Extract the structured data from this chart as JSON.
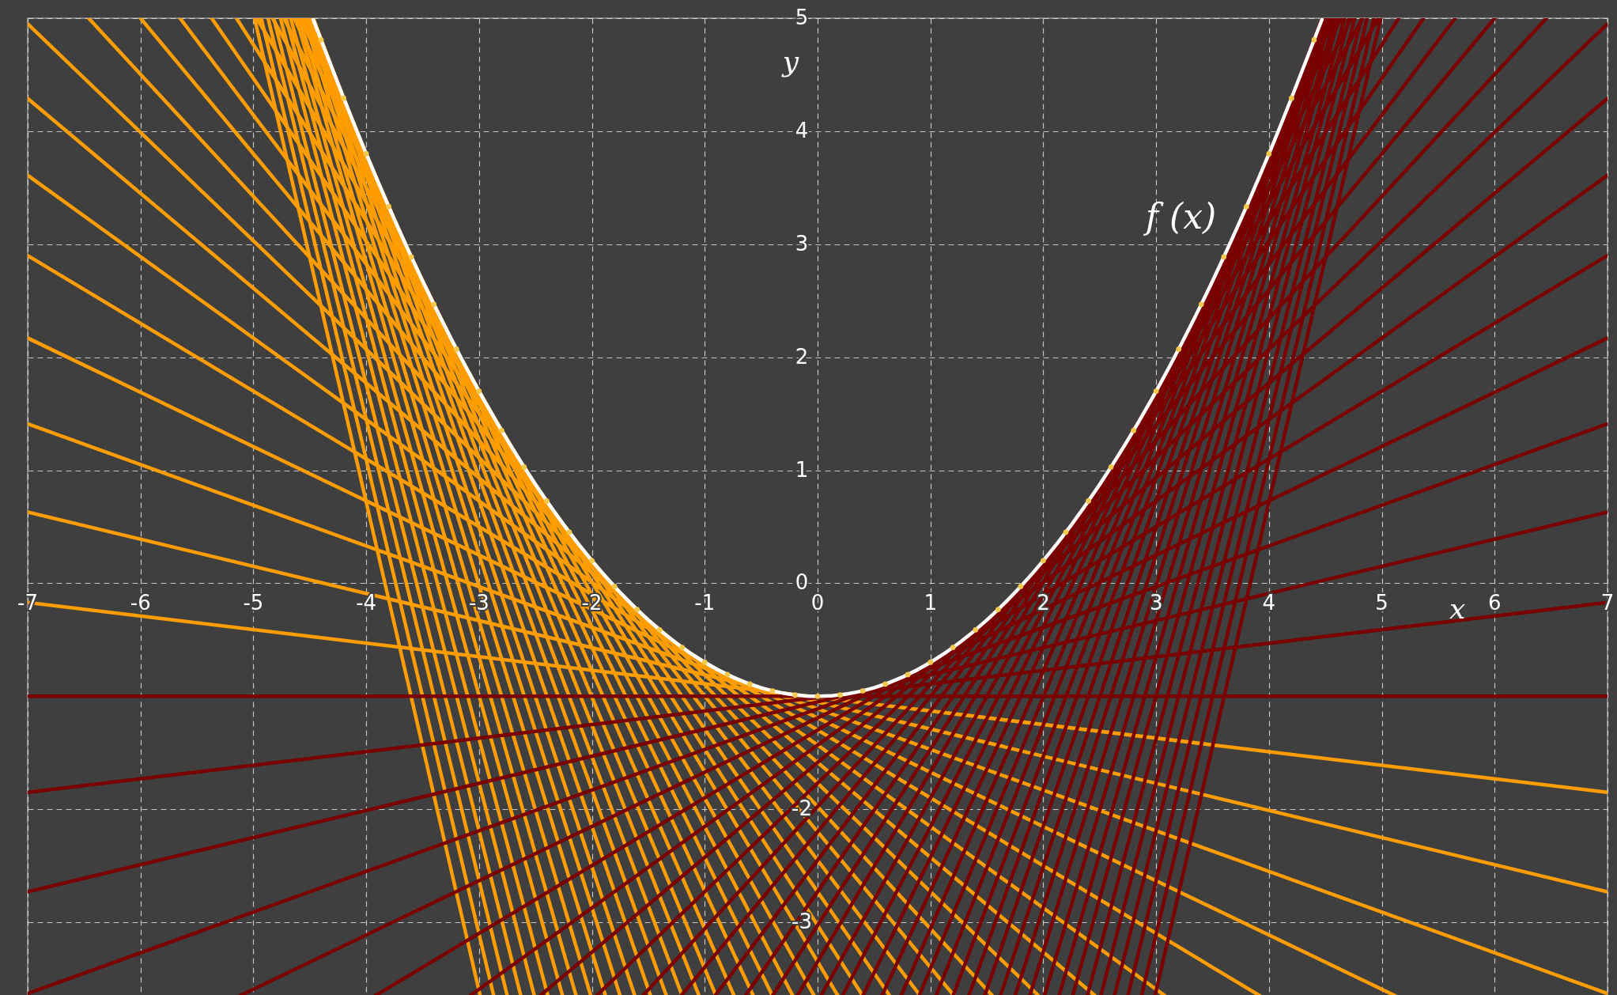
{
  "chart_data": {
    "type": "line",
    "xlabel": "x",
    "ylabel": "y",
    "xlim": [
      -7,
      7
    ],
    "ylim": [
      -3.65,
      5
    ],
    "xticks": [
      -7,
      -6,
      -5,
      -4,
      -3,
      -2,
      -1,
      0,
      1,
      2,
      3,
      4,
      5,
      6,
      7
    ],
    "yticks": [
      -3,
      -2,
      {
        "value": -1,
        "label": null
      },
      0,
      1,
      2,
      3,
      4,
      5
    ],
    "grid": true,
    "annotations": [
      "f (x)"
    ],
    "series": [
      {
        "color": "#ff9d00",
        "x": [
          -7,
          7
        ],
        "values": [
          -0.17,
          -1.85
        ]
      },
      {
        "color": "#ff9d00",
        "x": [
          -7,
          7
        ],
        "values": [
          0.63,
          -2.73
        ]
      },
      {
        "color": "#ff9d00",
        "x": [
          -7,
          7
        ],
        "values": [
          1.41,
          -3.63
        ]
      },
      {
        "color": "#ff9d00",
        "x": [
          -7,
          5.12
        ],
        "values": [
          2.17,
          -3.65
        ]
      },
      {
        "color": "#ff9d00",
        "x": [
          -7,
          3.92
        ],
        "values": [
          2.9,
          -3.65
        ]
      },
      {
        "color": "#ff9d00",
        "x": [
          -7,
          3.08
        ],
        "values": [
          3.61,
          -3.65
        ]
      },
      {
        "color": "#ff9d00",
        "x": [
          -7,
          2.46
        ],
        "values": [
          4.29,
          -3.65
        ]
      },
      {
        "color": "#ff9d00",
        "x": [
          -7,
          1.96
        ],
        "values": [
          4.95,
          -3.65
        ]
      },
      {
        "color": "#ff9d00",
        "x": [
          -6.46,
          1.55
        ],
        "values": [
          5,
          -3.65
        ]
      },
      {
        "color": "#ff9d00",
        "x": [
          -6,
          1.21
        ],
        "values": [
          5,
          -3.65
        ]
      },
      {
        "color": "#ff9d00",
        "x": [
          -5.65,
          0.91
        ],
        "values": [
          5,
          -3.65
        ]
      },
      {
        "color": "#ff9d00",
        "x": [
          -5.37,
          0.64
        ],
        "values": [
          5,
          -3.65
        ]
      },
      {
        "color": "#ff9d00",
        "x": [
          -5.15,
          0.4
        ],
        "values": [
          5,
          -3.65
        ]
      },
      {
        "color": "#ff9d00",
        "x": [
          -4.97,
          0.18
        ],
        "values": [
          5,
          -3.65
        ]
      },
      {
        "color": "#ff9d00",
        "x": [
          -4.83,
          -0.03
        ],
        "values": [
          5,
          -3.65
        ]
      },
      {
        "color": "#ff9d00",
        "x": [
          -4.73,
          -0.22
        ],
        "values": [
          5,
          -3.65
        ]
      },
      {
        "color": "#ff9d00",
        "x": [
          -4.64,
          -0.4
        ],
        "values": [
          5,
          -3.65
        ]
      },
      {
        "color": "#ff9d00",
        "x": [
          -4.58,
          -0.57
        ],
        "values": [
          5,
          -3.65
        ]
      },
      {
        "color": "#ff9d00",
        "x": [
          -4.53,
          -0.74
        ],
        "values": [
          5,
          -3.65
        ]
      },
      {
        "color": "#ff9d00",
        "x": [
          -4.5,
          -0.9
        ],
        "values": [
          5,
          -3.65
        ]
      },
      {
        "color": "#ff9d00",
        "x": [
          -4.48,
          -1.05
        ],
        "values": [
          5,
          -3.65
        ]
      },
      {
        "color": "#ff9d00",
        "x": [
          -4.47,
          -1.2
        ],
        "values": [
          5,
          -3.65
        ]
      },
      {
        "color": "#ff9d00",
        "x": [
          -4.47,
          -1.34
        ],
        "values": [
          5,
          -3.65
        ]
      },
      {
        "color": "#ff9d00",
        "x": [
          -4.48,
          -1.48
        ],
        "values": [
          5,
          -3.65
        ]
      },
      {
        "color": "#ff9d00",
        "x": [
          -4.5,
          -1.62
        ],
        "values": [
          5,
          -3.65
        ]
      },
      {
        "color": "#ff9d00",
        "x": [
          -4.52,
          -1.75
        ],
        "values": [
          5,
          -3.65
        ]
      },
      {
        "color": "#ff9d00",
        "x": [
          -4.55,
          -1.88
        ],
        "values": [
          5,
          -3.65
        ]
      },
      {
        "color": "#ff9d00",
        "x": [
          -4.59,
          -2.01
        ],
        "values": [
          5,
          -3.65
        ]
      },
      {
        "color": "#ff9d00",
        "x": [
          -4.62,
          -2.14
        ],
        "values": [
          5,
          -3.65
        ]
      },
      {
        "color": "#ff9d00",
        "x": [
          -4.67,
          -2.26
        ],
        "values": [
          5,
          -3.65
        ]
      },
      {
        "color": "#ff9d00",
        "x": [
          -4.71,
          -2.39
        ],
        "values": [
          5,
          -3.65
        ]
      },
      {
        "color": "#ff9d00",
        "x": [
          -4.76,
          -2.51
        ],
        "values": [
          5,
          -3.65
        ]
      },
      {
        "color": "#ff9d00",
        "x": [
          -4.82,
          -2.63
        ],
        "values": [
          5,
          -3.65
        ]
      },
      {
        "color": "#ff9d00",
        "x": [
          -4.87,
          -2.75
        ],
        "values": [
          5,
          -3.65
        ]
      },
      {
        "color": "#ff9d00",
        "x": [
          -4.93,
          -2.87
        ],
        "values": [
          5,
          -3.65
        ]
      },
      {
        "color": "#ff9d00",
        "x": [
          -4.99,
          -2.99
        ],
        "values": [
          5,
          -3.65
        ]
      },
      {
        "color": "#7a0000",
        "x": [
          -7,
          7
        ],
        "values": [
          -1,
          -1
        ]
      },
      {
        "color": "#7a0000",
        "x": [
          -7,
          7
        ],
        "values": [
          -1.85,
          -0.17
        ]
      },
      {
        "color": "#7a0000",
        "x": [
          -7,
          7
        ],
        "values": [
          -2.73,
          0.63
        ]
      },
      {
        "color": "#7a0000",
        "x": [
          -7,
          7
        ],
        "values": [
          -3.63,
          1.41
        ]
      },
      {
        "color": "#7a0000",
        "x": [
          -5.12,
          7
        ],
        "values": [
          -3.65,
          2.17
        ]
      },
      {
        "color": "#7a0000",
        "x": [
          -3.92,
          7
        ],
        "values": [
          -3.65,
          2.9
        ]
      },
      {
        "color": "#7a0000",
        "x": [
          -3.08,
          7
        ],
        "values": [
          -3.65,
          3.61
        ]
      },
      {
        "color": "#7a0000",
        "x": [
          -2.46,
          7
        ],
        "values": [
          -3.65,
          4.29
        ]
      },
      {
        "color": "#7a0000",
        "x": [
          -1.96,
          7
        ],
        "values": [
          -3.65,
          4.95
        ]
      },
      {
        "color": "#7a0000",
        "x": [
          -1.55,
          6.46
        ],
        "values": [
          -3.65,
          5
        ]
      },
      {
        "color": "#7a0000",
        "x": [
          -1.21,
          6
        ],
        "values": [
          -3.65,
          5
        ]
      },
      {
        "color": "#7a0000",
        "x": [
          -0.91,
          5.65
        ],
        "values": [
          -3.65,
          5
        ]
      },
      {
        "color": "#7a0000",
        "x": [
          -0.64,
          5.37
        ],
        "values": [
          -3.65,
          5
        ]
      },
      {
        "color": "#7a0000",
        "x": [
          -0.4,
          5.15
        ],
        "values": [
          -3.65,
          5
        ]
      },
      {
        "color": "#7a0000",
        "x": [
          -0.18,
          4.97
        ],
        "values": [
          -3.65,
          5
        ]
      },
      {
        "color": "#7a0000",
        "x": [
          0.03,
          4.83
        ],
        "values": [
          -3.65,
          5
        ]
      },
      {
        "color": "#7a0000",
        "x": [
          0.22,
          4.73
        ],
        "values": [
          -3.65,
          5
        ]
      },
      {
        "color": "#7a0000",
        "x": [
          0.4,
          4.64
        ],
        "values": [
          -3.65,
          5
        ]
      },
      {
        "color": "#7a0000",
        "x": [
          0.57,
          4.58
        ],
        "values": [
          -3.65,
          5
        ]
      },
      {
        "color": "#7a0000",
        "x": [
          0.74,
          4.53
        ],
        "values": [
          -3.65,
          5
        ]
      },
      {
        "color": "#7a0000",
        "x": [
          0.9,
          4.5
        ],
        "values": [
          -3.65,
          5
        ]
      },
      {
        "color": "#7a0000",
        "x": [
          1.05,
          4.48
        ],
        "values": [
          -3.65,
          5
        ]
      },
      {
        "color": "#7a0000",
        "x": [
          1.2,
          4.47
        ],
        "values": [
          -3.65,
          5
        ]
      },
      {
        "color": "#7a0000",
        "x": [
          1.34,
          4.47
        ],
        "values": [
          -3.65,
          5
        ]
      },
      {
        "color": "#7a0000",
        "x": [
          1.48,
          4.48
        ],
        "values": [
          -3.65,
          5
        ]
      },
      {
        "color": "#7a0000",
        "x": [
          1.62,
          4.5
        ],
        "values": [
          -3.65,
          5
        ]
      },
      {
        "color": "#7a0000",
        "x": [
          1.75,
          4.52
        ],
        "values": [
          -3.65,
          5
        ]
      },
      {
        "color": "#7a0000",
        "x": [
          1.88,
          4.55
        ],
        "values": [
          -3.65,
          5
        ]
      },
      {
        "color": "#7a0000",
        "x": [
          2.01,
          4.59
        ],
        "values": [
          -3.65,
          5
        ]
      },
      {
        "color": "#7a0000",
        "x": [
          2.14,
          4.62
        ],
        "values": [
          -3.65,
          5
        ]
      },
      {
        "color": "#7a0000",
        "x": [
          2.26,
          4.67
        ],
        "values": [
          -3.65,
          5
        ]
      },
      {
        "color": "#7a0000",
        "x": [
          2.39,
          4.71
        ],
        "values": [
          -3.65,
          5
        ]
      },
      {
        "color": "#7a0000",
        "x": [
          2.51,
          4.76
        ],
        "values": [
          -3.65,
          5
        ]
      },
      {
        "color": "#7a0000",
        "x": [
          2.63,
          4.82
        ],
        "values": [
          -3.65,
          5
        ]
      },
      {
        "color": "#7a0000",
        "x": [
          2.75,
          4.87
        ],
        "values": [
          -3.65,
          5
        ]
      },
      {
        "color": "#7a0000",
        "x": [
          2.87,
          4.93
        ],
        "values": [
          -3.65,
          5
        ]
      },
      {
        "color": "#7a0000",
        "x": [
          2.99,
          4.99
        ],
        "values": [
          -3.65,
          5
        ]
      },
      {
        "type": "scatter",
        "color": "#f2c94c",
        "x": [
          -4.4,
          -4.2,
          -4,
          -3.8,
          -3.6,
          -3.4,
          -3.2,
          -3,
          -2.8,
          -2.6,
          -2.4,
          -2.2,
          -2,
          -1.8,
          -1.6,
          -1.4,
          -1.2,
          -1,
          -0.8,
          -0.6,
          -0.4,
          -0.2,
          0,
          0.2,
          0.4,
          0.6,
          0.8,
          1,
          1.2,
          1.4,
          1.6,
          1.8,
          2,
          2.2,
          2.4,
          2.6,
          2.8,
          3,
          3.2,
          3.4,
          3.6,
          3.8,
          4,
          4.2,
          4.4
        ],
        "values": [
          4.808,
          4.292,
          3.8,
          3.332,
          2.888,
          2.468,
          2.072,
          1.7,
          1.352,
          1.028,
          0.728,
          0.452,
          0.2,
          -0.028,
          -0.232,
          -0.412,
          -0.568,
          -0.7,
          -0.808,
          -0.892,
          -0.952,
          -0.988,
          -1,
          -0.988,
          -0.952,
          -0.892,
          -0.808,
          -0.7,
          -0.568,
          -0.412,
          -0.232,
          -0.028,
          0.2,
          0.452,
          0.728,
          1.028,
          1.352,
          1.7,
          2.072,
          2.468,
          2.888,
          3.332,
          3.8,
          4.292,
          4.808
        ]
      },
      {
        "color": "#ffffff",
        "x": [
          -4.47,
          -4,
          -3.5,
          -3,
          -2.5,
          -2,
          -1.5,
          -1,
          -0.5,
          0,
          0.5,
          1,
          1.5,
          2,
          2.5,
          3,
          3.5,
          4,
          4.47
        ],
        "values": [
          4.99,
          3.8,
          2.675,
          1.7,
          0.875,
          0.2,
          -0.325,
          -0.7,
          -0.925,
          -1,
          -0.925,
          -0.7,
          -0.325,
          0.2,
          0.875,
          1.7,
          2.675,
          3.8,
          4.99
        ]
      }
    ]
  }
}
